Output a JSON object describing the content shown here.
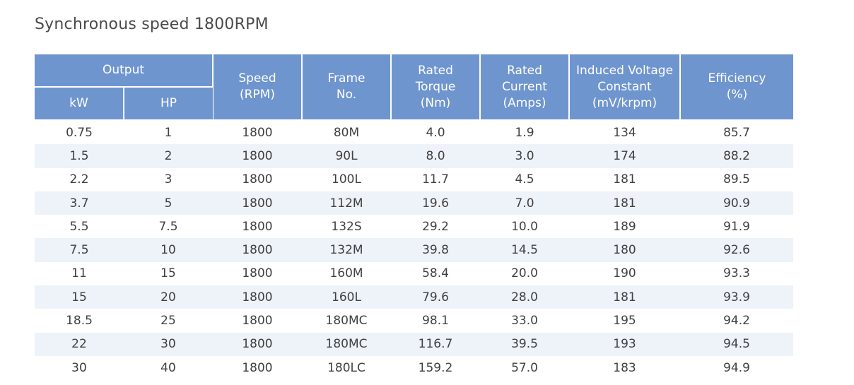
{
  "page": {
    "title": "Synchronous speed 1800RPM"
  },
  "table": {
    "header": {
      "output": "Output",
      "kw": "kW",
      "hp": "HP",
      "speed": [
        "Speed",
        "(RPM)"
      ],
      "frame": [
        "Frame",
        "No."
      ],
      "torque": [
        "Rated",
        "Torque",
        "(Nm)"
      ],
      "current": [
        "Rated",
        "Current",
        "(Amps)"
      ],
      "ivc": [
        "Induced Voltage",
        "Constant",
        "(mV/krpm)"
      ],
      "efficiency": [
        "Efficiency",
        "(%)"
      ]
    },
    "rows": [
      [
        "0.75",
        "1",
        "1800",
        "80M",
        "4.0",
        "1.9",
        "134",
        "85.7"
      ],
      [
        "1.5",
        "2",
        "1800",
        "90L",
        "8.0",
        "3.0",
        "174",
        "88.2"
      ],
      [
        "2.2",
        "3",
        "1800",
        "100L",
        "11.7",
        "4.5",
        "181",
        "89.5"
      ],
      [
        "3.7",
        "5",
        "1800",
        "112M",
        "19.6",
        "7.0",
        "181",
        "90.9"
      ],
      [
        "5.5",
        "7.5",
        "1800",
        "132S",
        "29.2",
        "10.0",
        "189",
        "91.9"
      ],
      [
        "7.5",
        "10",
        "1800",
        "132M",
        "39.8",
        "14.5",
        "180",
        "92.6"
      ],
      [
        "11",
        "15",
        "1800",
        "160M",
        "58.4",
        "20.0",
        "190",
        "93.3"
      ],
      [
        "15",
        "20",
        "1800",
        "160L",
        "79.6",
        "28.0",
        "181",
        "93.9"
      ],
      [
        "18.5",
        "25",
        "1800",
        "180MC",
        "98.1",
        "33.0",
        "195",
        "94.2"
      ],
      [
        "22",
        "30",
        "1800",
        "180MC",
        "116.7",
        "39.5",
        "193",
        "94.5"
      ],
      [
        "30",
        "40",
        "1800",
        "180LC",
        "159.2",
        "57.0",
        "183",
        "94.9"
      ]
    ]
  },
  "colors": {
    "header_bg": "#6f95cf",
    "stripe_bg": "#eef2f9"
  }
}
